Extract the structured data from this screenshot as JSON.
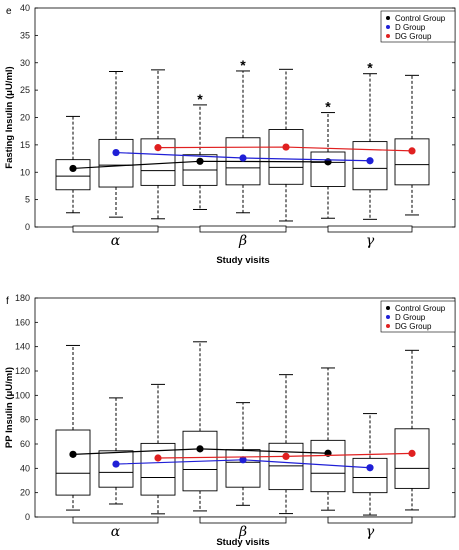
{
  "chart_data": [
    {
      "panel": "e",
      "type": "box",
      "ylabel": "Fasting Insulin (μU/ml)",
      "xlabel": "Study visits",
      "ylim": [
        0,
        40
      ],
      "yticks": [
        0,
        5,
        10,
        15,
        20,
        25,
        30,
        35,
        40
      ],
      "visits": [
        "α",
        "β",
        "γ"
      ],
      "legend": [
        {
          "label": "Control Group",
          "color": "#000000"
        },
        {
          "label": "D Group",
          "color": "#1f1fd6"
        },
        {
          "label": "DG Group",
          "color": "#e02020"
        }
      ],
      "legend_position": "top-right",
      "boxes": [
        {
          "visit": 0,
          "group": 0,
          "min": 2.6,
          "q1": 6.8,
          "median": 9.3,
          "q3": 12.3,
          "max": 20.2
        },
        {
          "visit": 0,
          "group": 1,
          "min": 1.8,
          "q1": 7.3,
          "median": 11.3,
          "q3": 16.0,
          "max": 28.4
        },
        {
          "visit": 0,
          "group": 2,
          "min": 1.5,
          "q1": 7.6,
          "median": 10.3,
          "q3": 16.1,
          "max": 28.7
        },
        {
          "visit": 1,
          "group": 0,
          "min": 3.2,
          "q1": 7.6,
          "median": 10.4,
          "q3": 13.2,
          "max": 22.3
        },
        {
          "visit": 1,
          "group": 1,
          "min": 2.6,
          "q1": 7.7,
          "median": 10.8,
          "q3": 16.3,
          "max": 28.5
        },
        {
          "visit": 1,
          "group": 2,
          "min": 1.1,
          "q1": 7.8,
          "median": 10.9,
          "q3": 17.8,
          "max": 28.8
        },
        {
          "visit": 2,
          "group": 0,
          "min": 1.6,
          "q1": 7.4,
          "median": 11.8,
          "q3": 13.7,
          "max": 20.9
        },
        {
          "visit": 2,
          "group": 1,
          "min": 1.4,
          "q1": 6.8,
          "median": 10.7,
          "q3": 15.6,
          "max": 28.0
        },
        {
          "visit": 2,
          "group": 2,
          "min": 2.2,
          "q1": 7.7,
          "median": 11.4,
          "q3": 16.1,
          "max": 27.7
        }
      ],
      "series": [
        {
          "name": "Control Group",
          "color": "#000000",
          "values": [
            10.7,
            12.0,
            11.9
          ]
        },
        {
          "name": "D Group",
          "color": "#1f1fd6",
          "values": [
            13.6,
            12.6,
            12.1
          ]
        },
        {
          "name": "DG Group",
          "color": "#e02020",
          "values": [
            14.5,
            14.6,
            13.9
          ]
        }
      ],
      "stars": [
        {
          "visit": 1,
          "group": 0,
          "text": "*"
        },
        {
          "visit": 1,
          "group": 1,
          "text": "*"
        },
        {
          "visit": 2,
          "group": 0,
          "text": "*"
        },
        {
          "visit": 2,
          "group": 1,
          "text": "*"
        }
      ]
    },
    {
      "panel": "f",
      "type": "box",
      "ylabel": "PP Insulin (μU/ml)",
      "xlabel": "Study visits",
      "ylim": [
        0,
        180
      ],
      "yticks": [
        0,
        20,
        40,
        60,
        80,
        100,
        120,
        140,
        160,
        180
      ],
      "visits": [
        "α",
        "β",
        "γ"
      ],
      "legend": [
        {
          "label": "Control Group",
          "color": "#000000"
        },
        {
          "label": "D Group",
          "color": "#1f1fd6"
        },
        {
          "label": "DG Group",
          "color": "#e02020"
        }
      ],
      "legend_position": "top-right",
      "boxes": [
        {
          "visit": 0,
          "group": 0,
          "min": 5.7,
          "q1": 18.0,
          "median": 36.0,
          "q3": 71.5,
          "max": 141.0
        },
        {
          "visit": 0,
          "group": 1,
          "min": 10.7,
          "q1": 24.5,
          "median": 36.7,
          "q3": 54.4,
          "max": 97.9
        },
        {
          "visit": 0,
          "group": 2,
          "min": 2.6,
          "q1": 18.0,
          "median": 32.5,
          "q3": 60.5,
          "max": 109.0
        },
        {
          "visit": 1,
          "group": 0,
          "min": 5.0,
          "q1": 21.5,
          "median": 39.0,
          "q3": 70.5,
          "max": 144.0
        },
        {
          "visit": 1,
          "group": 1,
          "min": 9.6,
          "q1": 24.5,
          "median": 45.0,
          "q3": 55.4,
          "max": 94.0
        },
        {
          "visit": 1,
          "group": 2,
          "min": 2.8,
          "q1": 22.5,
          "median": 42.0,
          "q3": 60.6,
          "max": 117.0
        },
        {
          "visit": 2,
          "group": 0,
          "min": 5.6,
          "q1": 20.8,
          "median": 36.0,
          "q3": 63.0,
          "max": 122.5
        },
        {
          "visit": 2,
          "group": 1,
          "min": 1.6,
          "q1": 20.0,
          "median": 32.5,
          "q3": 48.2,
          "max": 85.0
        },
        {
          "visit": 2,
          "group": 2,
          "min": 5.8,
          "q1": 23.5,
          "median": 40.0,
          "q3": 72.5,
          "max": 137.0
        }
      ],
      "series": [
        {
          "name": "Control Group",
          "color": "#000000",
          "values": [
            51.5,
            56.0,
            52.4
          ]
        },
        {
          "name": "D Group",
          "color": "#1f1fd6",
          "values": [
            43.5,
            47.0,
            40.5
          ]
        },
        {
          "name": "DG Group",
          "color": "#e02020",
          "values": [
            48.5,
            49.8,
            52.3
          ]
        }
      ],
      "stars": []
    }
  ]
}
